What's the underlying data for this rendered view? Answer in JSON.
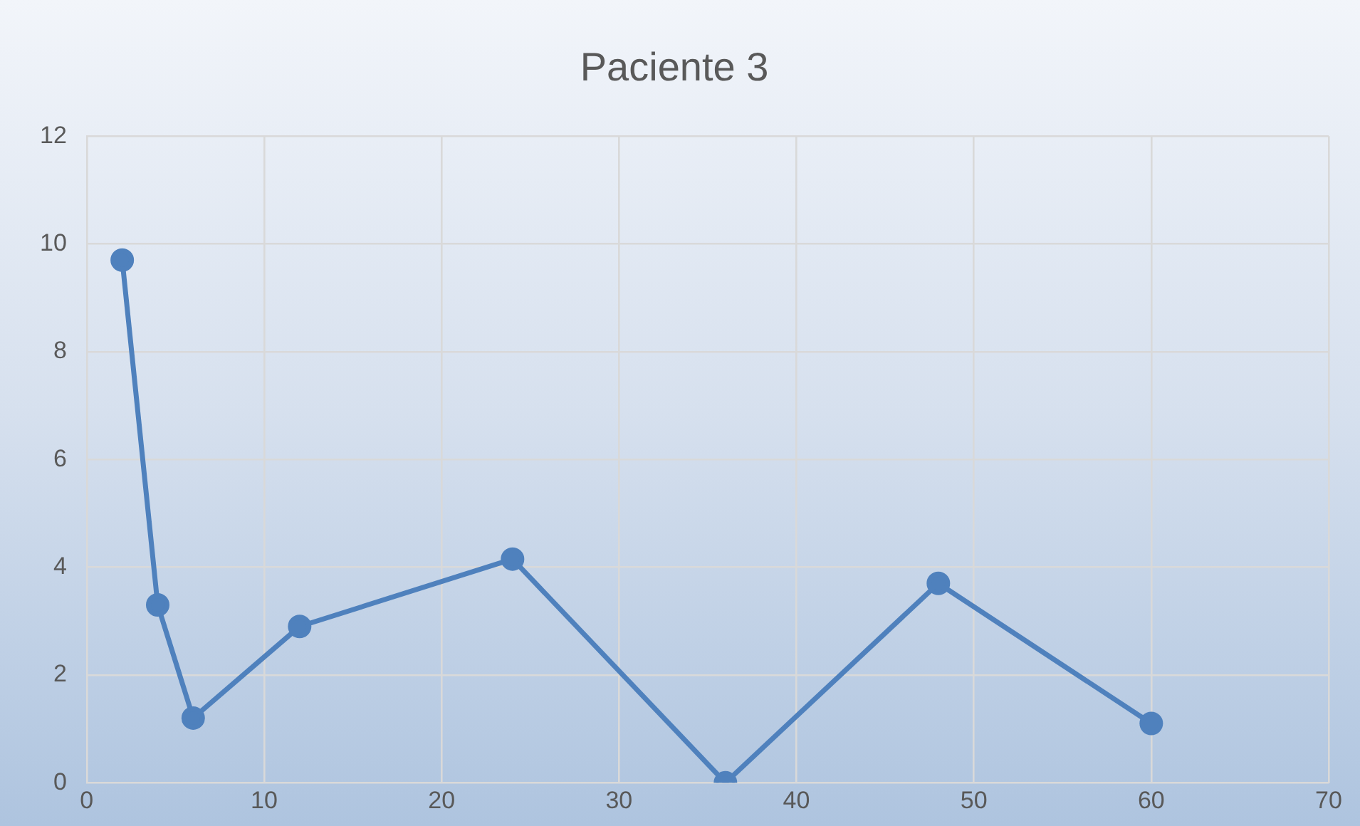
{
  "chart_data": {
    "type": "line",
    "title": "Paciente 3",
    "x": [
      2,
      4,
      6,
      12,
      24,
      36,
      48,
      60
    ],
    "series": [
      {
        "color": "#4f81bd",
        "values": [
          9.7,
          3.3,
          1.2,
          2.9,
          4.15,
          0,
          3.7,
          1.1
        ]
      }
    ],
    "xlim": [
      0,
      70
    ],
    "xticks": [
      0,
      10,
      20,
      30,
      40,
      50,
      60,
      70
    ],
    "ylim": [
      0,
      12
    ],
    "yticks": [
      0,
      2,
      4,
      6,
      8,
      10,
      12
    ],
    "grid": true,
    "legend": false,
    "marker": "circle",
    "line_style": "solid"
  }
}
